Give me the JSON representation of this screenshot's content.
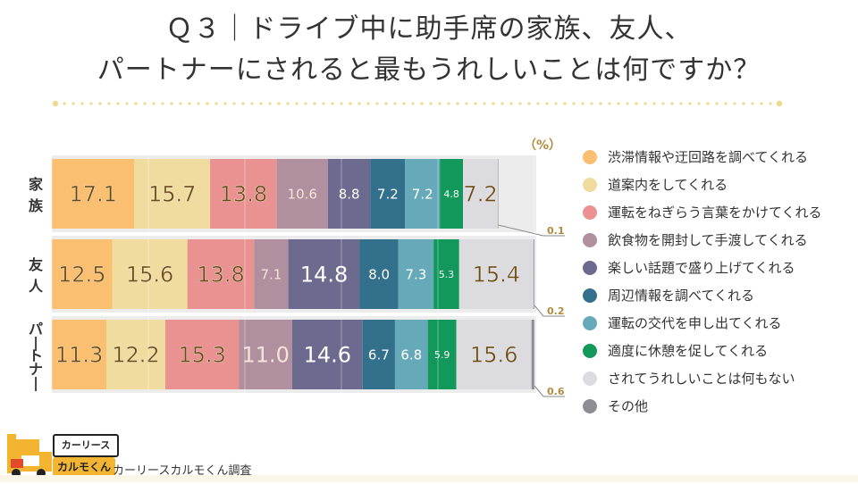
{
  "title": {
    "line1": "Ｑ３｜ドライブ中に助手席の家族、友人、",
    "line2": "パートナーにされると最もうれしいことは何ですか？"
  },
  "unit_label": "（%）",
  "source": "カーリースカルモくん調査",
  "logo": {
    "top": "カーリース",
    "bottom": "カルモくん"
  },
  "colors": {
    "accent": "#f3b531",
    "dots": "#f0d98c",
    "bg_bar": "#ececec"
  },
  "chart_data": {
    "type": "bar",
    "stacked": true,
    "orientation": "horizontal",
    "categories": [
      "家族",
      "友人",
      "パートナー"
    ],
    "category_display": [
      "家\n族",
      "友\n人",
      "パ\nー\nト\nナ\nー"
    ],
    "xlim": [
      0,
      100
    ],
    "series": [
      {
        "name": "渋滞情報や迂回路を調べてくれる",
        "color": "#fbbf72",
        "values": [
          17.1,
          12.5,
          11.3
        ]
      },
      {
        "name": "道案内をしてくれる",
        "color": "#f1dc9f",
        "values": [
          15.7,
          15.6,
          12.2
        ]
      },
      {
        "name": "運転をねぎらう言葉をかけてくれる",
        "color": "#ea9292",
        "values": [
          13.8,
          13.8,
          15.3
        ]
      },
      {
        "name": "飲食物を開封して手渡してくれる",
        "color": "#b08f9f",
        "values": [
          10.6,
          7.1,
          11.0
        ]
      },
      {
        "name": "楽しい話題で盛り上げてくれる",
        "color": "#6c6a8e",
        "values": [
          8.8,
          14.8,
          14.6
        ]
      },
      {
        "name": "周辺情報を調べてくれる",
        "color": "#33708c",
        "values": [
          7.2,
          8.0,
          6.7
        ]
      },
      {
        "name": "運転の交代を申し出てくれる",
        "color": "#66aab9",
        "values": [
          7.2,
          7.3,
          6.8
        ]
      },
      {
        "name": "適度に休憩を促してくれる",
        "color": "#11985a",
        "values": [
          4.8,
          5.3,
          5.9
        ]
      },
      {
        "name": "されてうれしいことは何もない",
        "color": "#dcdbdf",
        "values": [
          7.2,
          15.4,
          15.6
        ]
      },
      {
        "name": "その他",
        "color": "#8d8d93",
        "values": [
          0.1,
          0.2,
          0.6
        ]
      }
    ],
    "value_labels": [
      [
        "17.1",
        "15.7",
        "13.8",
        "10.6",
        "8.8",
        "7.2",
        "7.2",
        "4.8",
        "7.2",
        "0.1"
      ],
      [
        "12.5",
        "15.6",
        "13.8",
        "7.1",
        "14.8",
        "8.0",
        "7.3",
        "5.3",
        "15.4",
        "0.2"
      ],
      [
        "11.3",
        "12.2",
        "15.3",
        "11.0",
        "14.6",
        "6.7",
        "6.8",
        "5.9",
        "15.6",
        "0.6"
      ]
    ]
  }
}
